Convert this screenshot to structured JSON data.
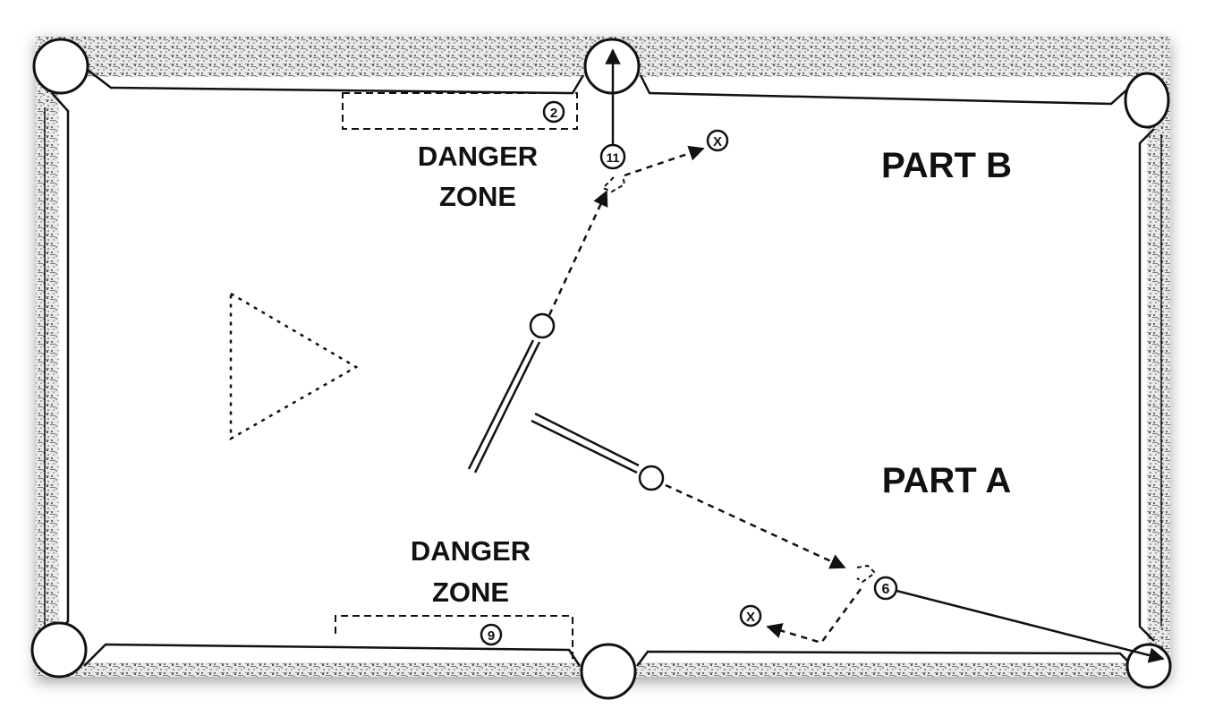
{
  "labels": {
    "part_b": "PART B",
    "part_a": "PART A",
    "danger_top_line1": "DANGER",
    "danger_top_line2": "ZONE",
    "danger_bottom_line1": "DANGER",
    "danger_bottom_line2": "ZONE"
  },
  "balls": {
    "ball_2": "2",
    "ball_9": "9",
    "ball_11": "11",
    "ball_6": "6"
  },
  "markers": {
    "target_top": "X",
    "target_bottom": "X"
  },
  "colors": {
    "ink": "#111111",
    "cloth": "#ffffff",
    "rail_speckle": "#2a2a2a"
  }
}
